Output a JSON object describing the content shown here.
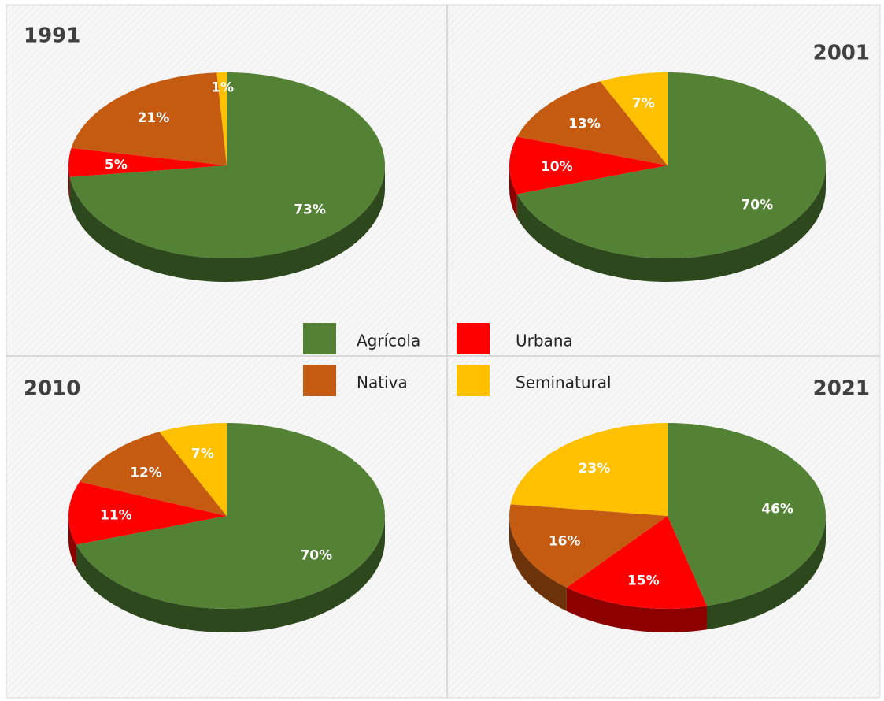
{
  "chart_data": [
    {
      "type": "pie",
      "title": "1991",
      "categories": [
        "Agrícola",
        "Urbana",
        "Nativa",
        "Seminatural"
      ],
      "values": [
        73,
        5,
        21,
        1
      ],
      "value_labels": [
        "73%",
        "5%",
        "21%",
        "1%"
      ],
      "colors": [
        "#548235",
        "#ff0000",
        "#c55a11",
        "#ffc000"
      ]
    },
    {
      "type": "pie",
      "title": "2001",
      "categories": [
        "Agrícola",
        "Urbana",
        "Nativa",
        "Seminatural"
      ],
      "values": [
        70,
        10,
        13,
        7
      ],
      "value_labels": [
        "70%",
        "10%",
        "13%",
        "7%"
      ],
      "colors": [
        "#548235",
        "#ff0000",
        "#c55a11",
        "#ffc000"
      ]
    },
    {
      "type": "pie",
      "title": "2010",
      "categories": [
        "Agrícola",
        "Urbana",
        "Nativa",
        "Seminatural"
      ],
      "values": [
        70,
        11,
        12,
        7
      ],
      "value_labels": [
        "70%",
        "11%",
        "12%",
        "7%"
      ],
      "colors": [
        "#548235",
        "#ff0000",
        "#c55a11",
        "#ffc000"
      ]
    },
    {
      "type": "pie",
      "title": "2021",
      "categories": [
        "Agrícola",
        "Urbana",
        "Nativa",
        "Seminatural"
      ],
      "values": [
        46,
        15,
        16,
        23
      ],
      "value_labels": [
        "46%",
        "15%",
        "16%",
        "23%"
      ],
      "colors": [
        "#548235",
        "#ff0000",
        "#c55a11",
        "#ffc000"
      ]
    }
  ]
}
